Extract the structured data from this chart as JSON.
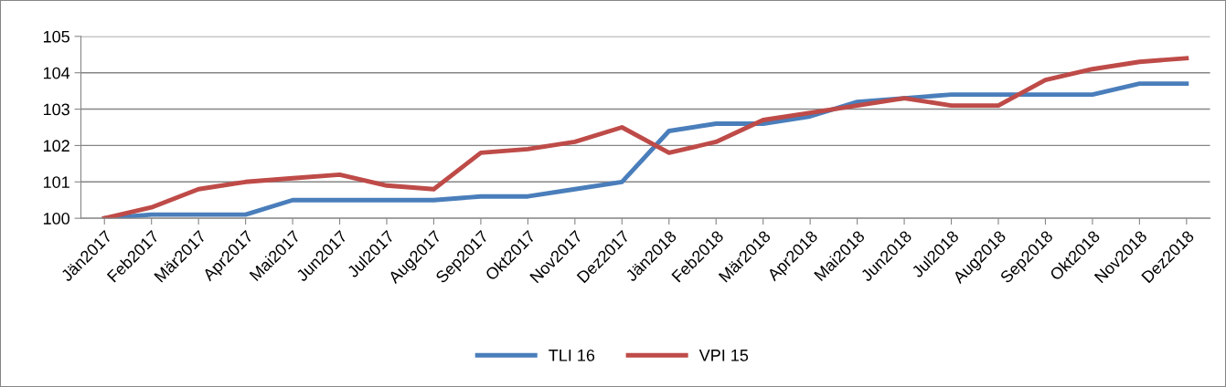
{
  "chart_data": {
    "type": "line",
    "categories": [
      "Jän2017",
      "Feb2017",
      "Mär2017",
      "Apr2017",
      "Mai2017",
      "Jun2017",
      "Jul2017",
      "Aug2017",
      "Sep2017",
      "Okt2017",
      "Nov2017",
      "Dez2017",
      "Jän2018",
      "Feb2018",
      "Mär2018",
      "Apr2018",
      "Mai2018",
      "Jun2018",
      "Jul2018",
      "Aug2018",
      "Sep2018",
      "Okt2018",
      "Nov2018",
      "Dez2018"
    ],
    "series": [
      {
        "name": "TLI 16",
        "color": "#4a7ebb",
        "values": [
          100,
          100.1,
          100.1,
          100.1,
          100.5,
          100.5,
          100.5,
          100.5,
          100.6,
          100.6,
          100.8,
          101.0,
          102.4,
          102.6,
          102.6,
          102.8,
          103.2,
          103.3,
          103.4,
          103.4,
          103.4,
          103.4,
          103.7,
          103.7
        ]
      },
      {
        "name": "VPI 15",
        "color": "#be4b48",
        "values": [
          100,
          100.3,
          100.8,
          101.0,
          101.1,
          101.2,
          100.9,
          100.8,
          101.8,
          101.9,
          102.1,
          102.5,
          101.8,
          102.1,
          102.7,
          102.9,
          103.1,
          103.3,
          103.1,
          103.1,
          103.8,
          104.1,
          104.3,
          104.4
        ]
      }
    ],
    "ylim": [
      100,
      105
    ],
    "yticks": [
      100,
      101,
      102,
      103,
      104,
      105
    ],
    "grid": "y",
    "legend": "bottom",
    "marker": "none",
    "line_style": "solid"
  }
}
